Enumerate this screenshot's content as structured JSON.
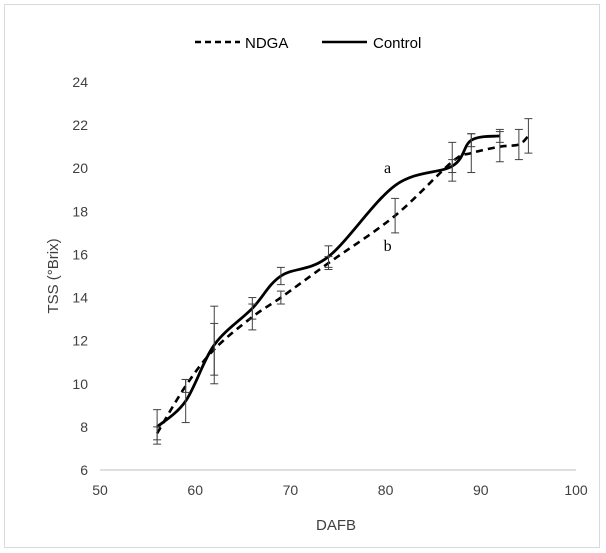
{
  "chart_data": {
    "type": "line",
    "xlabel": "DAFB",
    "ylabel": "TSS (°Brix)",
    "xlim": [
      50,
      100
    ],
    "ylim": [
      6,
      24
    ],
    "xticks": [
      50,
      60,
      70,
      80,
      90,
      100
    ],
    "yticks": [
      6,
      8,
      10,
      12,
      14,
      16,
      18,
      20,
      22,
      24
    ],
    "grid": false,
    "legend_position": "top",
    "series": [
      {
        "name": "NDGA",
        "style": "dashed",
        "color": "#000000",
        "x": [
          56,
          59,
          62,
          66,
          69,
          74,
          81,
          87,
          89,
          92,
          94,
          95
        ],
        "y": [
          7.7,
          9.9,
          11.6,
          13.1,
          14.0,
          15.6,
          17.8,
          20.3,
          20.7,
          21.0,
          21.1,
          21.5
        ],
        "error": [
          0.3,
          0.3,
          1.2,
          0.6,
          0.3,
          0.3,
          0.8,
          0.9,
          0.9,
          0.7,
          0.7,
          0.8
        ]
      },
      {
        "name": "Control",
        "style": "solid",
        "color": "#000000",
        "x": [
          56,
          59,
          62,
          66,
          69,
          74,
          81,
          87,
          89,
          92
        ],
        "y": [
          8.0,
          9.2,
          11.8,
          13.5,
          15.0,
          15.9,
          19.2,
          20.1,
          21.3,
          21.5
        ],
        "error": [
          0.8,
          1.0,
          1.8,
          0.5,
          0.4,
          0.5,
          0.0,
          0.3,
          0.3,
          0.3
        ]
      }
    ],
    "annotations": [
      {
        "text": "a",
        "x": 80,
        "y": 20.0
      },
      {
        "text": "b",
        "x": 80,
        "y": 16.4
      }
    ]
  }
}
